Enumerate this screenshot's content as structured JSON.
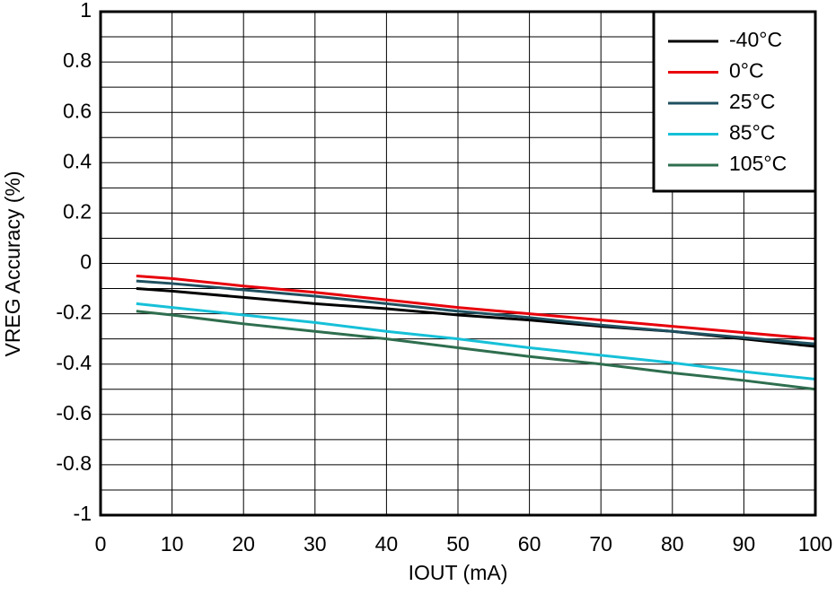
{
  "chart_data": {
    "type": "line",
    "x_label": "IOUT (mA)",
    "y_label": "VREG Accuracy (%)",
    "x": [
      5,
      10,
      20,
      30,
      40,
      50,
      60,
      70,
      80,
      90,
      100
    ],
    "series": [
      {
        "name": "-40°C",
        "color": "#000000",
        "values": [
          -0.1,
          -0.11,
          -0.135,
          -0.16,
          -0.18,
          -0.205,
          -0.225,
          -0.25,
          -0.27,
          -0.3,
          -0.33
        ]
      },
      {
        "name": "0°C",
        "color": "#e8000b",
        "values": [
          -0.05,
          -0.06,
          -0.09,
          -0.115,
          -0.145,
          -0.175,
          -0.2,
          -0.225,
          -0.25,
          -0.275,
          -0.3
        ]
      },
      {
        "name": "25°C",
        "color": "#1f5060",
        "values": [
          -0.07,
          -0.08,
          -0.105,
          -0.13,
          -0.16,
          -0.19,
          -0.215,
          -0.245,
          -0.27,
          -0.295,
          -0.32
        ]
      },
      {
        "name": "85°C",
        "color": "#16c0d8",
        "values": [
          -0.16,
          -0.175,
          -0.205,
          -0.235,
          -0.27,
          -0.3,
          -0.335,
          -0.365,
          -0.395,
          -0.43,
          -0.46
        ]
      },
      {
        "name": "105°C",
        "color": "#2e6e4e",
        "values": [
          -0.19,
          -0.205,
          -0.24,
          -0.27,
          -0.3,
          -0.335,
          -0.37,
          -0.4,
          -0.435,
          -0.465,
          -0.5
        ]
      }
    ],
    "xlim": [
      0,
      100
    ],
    "xticks": [
      0,
      10,
      20,
      30,
      40,
      50,
      60,
      70,
      80,
      90,
      100
    ],
    "ylim": [
      -1,
      1
    ],
    "yticks": [
      1,
      0.8,
      0.6,
      0.4,
      0.2,
      0,
      -0.2,
      -0.4,
      -0.6,
      -0.8,
      -1
    ],
    "grid": true,
    "legend": "top-right"
  }
}
